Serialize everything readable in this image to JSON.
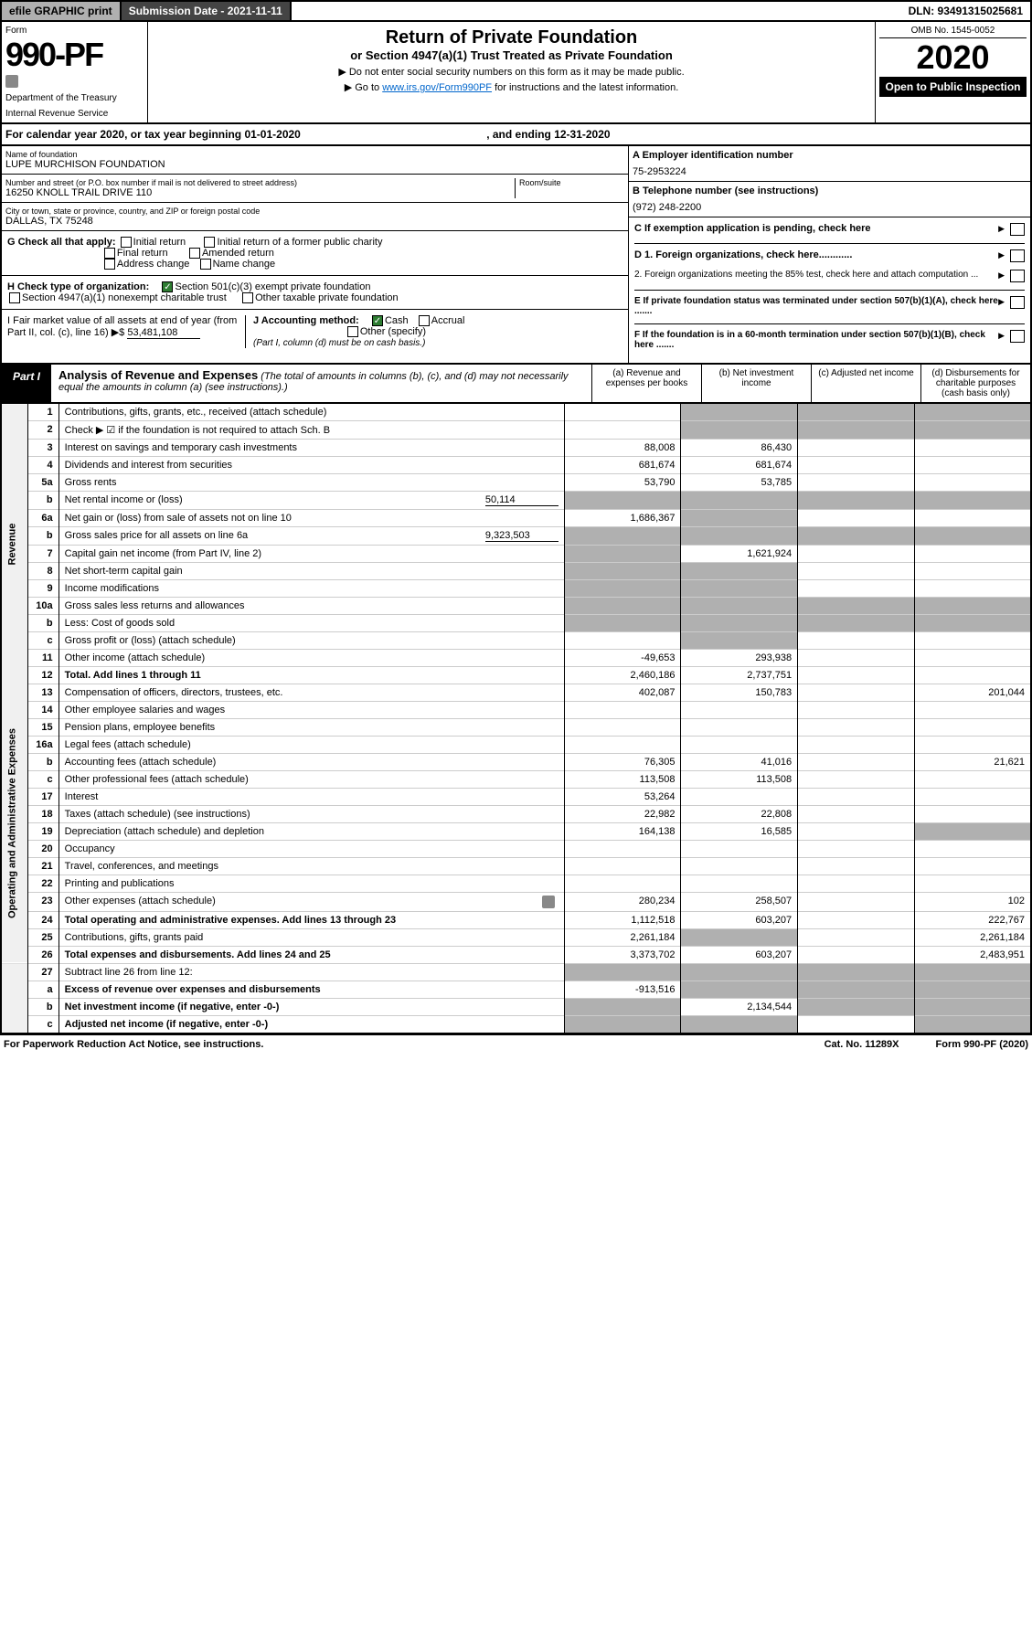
{
  "topbar": {
    "efile": "efile GRAPHIC print",
    "subdate": "Submission Date - 2021-11-11",
    "dln": "DLN: 93491315025681"
  },
  "header": {
    "form_label": "Form",
    "form_num": "990-PF",
    "dept": "Department of the Treasury",
    "irs": "Internal Revenue Service",
    "title": "Return of Private Foundation",
    "subtitle": "or Section 4947(a)(1) Trust Treated as Private Foundation",
    "note1": "▶ Do not enter social security numbers on this form as it may be made public.",
    "note2_pre": "▶ Go to ",
    "note2_link": "www.irs.gov/Form990PF",
    "note2_post": " for instructions and the latest information.",
    "omb": "OMB No. 1545-0052",
    "year": "2020",
    "open": "Open to Public Inspection"
  },
  "calyear": {
    "text_pre": "For calendar year 2020, or tax year beginning ",
    "begin": "01-01-2020",
    "text_mid": ", and ending ",
    "end": "12-31-2020"
  },
  "entity": {
    "name_lbl": "Name of foundation",
    "name": "LUPE MURCHISON FOUNDATION",
    "addr_lbl": "Number and street (or P.O. box number if mail is not delivered to street address)",
    "addr": "16250 KNOLL TRAIL DRIVE 110",
    "room_lbl": "Room/suite",
    "city_lbl": "City or town, state or province, country, and ZIP or foreign postal code",
    "city": "DALLAS, TX  75248",
    "ein_lbl": "A Employer identification number",
    "ein": "75-2953224",
    "phone_lbl": "B Telephone number (see instructions)",
    "phone": "(972) 248-2200",
    "c_lbl": "C If exemption application is pending, check here"
  },
  "checks": {
    "g_label": "G Check all that apply:",
    "g_opts": [
      "Initial return",
      "Final return",
      "Address change",
      "Initial return of a former public charity",
      "Amended return",
      "Name change"
    ],
    "h_label": "H Check type of organization:",
    "h_501": "Section 501(c)(3) exempt private foundation",
    "h_4947": "Section 4947(a)(1) nonexempt charitable trust",
    "h_other": "Other taxable private foundation",
    "i_label": "I Fair market value of all assets at end of year (from Part II, col. (c), line 16) ▶$",
    "i_val": "53,481,108",
    "j_label": "J Accounting method:",
    "j_cash": "Cash",
    "j_accrual": "Accrual",
    "j_other": "Other (specify)",
    "j_note": "(Part I, column (d) must be on cash basis.)",
    "d1": "D 1. Foreign organizations, check here............",
    "d2": "2. Foreign organizations meeting the 85% test, check here and attach computation ...",
    "e": "E  If private foundation status was terminated under section 507(b)(1)(A), check here .......",
    "f": "F  If the foundation is in a 60-month termination under section 507(b)(1)(B), check here .......",
    "arrow": "▶"
  },
  "part1": {
    "tag": "Part I",
    "title": "Analysis of Revenue and Expenses",
    "title_note": " (The total of amounts in columns (b), (c), and (d) may not necessarily equal the amounts in column (a) (see instructions).)",
    "col_a": "(a) Revenue and expenses per books",
    "col_b": "(b) Net investment income",
    "col_c": "(c) Adjusted net income",
    "col_d": "(d) Disbursements for charitable purposes (cash basis only)"
  },
  "sections": {
    "revenue": "Revenue",
    "expenses": "Operating and Administrative Expenses"
  },
  "lines": [
    {
      "n": "1",
      "d": "Contributions, gifts, grants, etc., received (attach schedule)",
      "a": "",
      "b": "",
      "c": "",
      "dv": "",
      "sb": true,
      "sc": true,
      "sd": true
    },
    {
      "n": "2",
      "d": "Check ▶ ☑ if the foundation is not required to attach Sch. B",
      "a": "",
      "b": "",
      "c": "",
      "dv": "",
      "sb": true,
      "sc": true,
      "sd": true
    },
    {
      "n": "3",
      "d": "Interest on savings and temporary cash investments",
      "a": "88,008",
      "b": "86,430",
      "c": "",
      "dv": ""
    },
    {
      "n": "4",
      "d": "Dividends and interest from securities",
      "a": "681,674",
      "b": "681,674",
      "c": "",
      "dv": ""
    },
    {
      "n": "5a",
      "d": "Gross rents",
      "a": "53,790",
      "b": "53,785",
      "c": "",
      "dv": ""
    },
    {
      "n": "b",
      "d": "Net rental income or (loss)",
      "inline": "50,114",
      "a": "",
      "b": "",
      "c": "",
      "dv": "",
      "sa": true,
      "sb": true,
      "sc": true,
      "sd": true
    },
    {
      "n": "6a",
      "d": "Net gain or (loss) from sale of assets not on line 10",
      "a": "1,686,367",
      "b": "",
      "c": "",
      "dv": "",
      "sb": true
    },
    {
      "n": "b",
      "d": "Gross sales price for all assets on line 6a",
      "inline": "9,323,503",
      "a": "",
      "b": "",
      "c": "",
      "dv": "",
      "sa": true,
      "sb": true,
      "sc": true,
      "sd": true
    },
    {
      "n": "7",
      "d": "Capital gain net income (from Part IV, line 2)",
      "a": "",
      "b": "1,621,924",
      "c": "",
      "dv": "",
      "sa": true
    },
    {
      "n": "8",
      "d": "Net short-term capital gain",
      "a": "",
      "b": "",
      "c": "",
      "dv": "",
      "sa": true,
      "sb": true
    },
    {
      "n": "9",
      "d": "Income modifications",
      "a": "",
      "b": "",
      "c": "",
      "dv": "",
      "sa": true,
      "sb": true
    },
    {
      "n": "10a",
      "d": "Gross sales less returns and allowances",
      "a": "",
      "b": "",
      "c": "",
      "dv": "",
      "sa": true,
      "sb": true,
      "sc": true,
      "sd": true
    },
    {
      "n": "b",
      "d": "Less: Cost of goods sold",
      "a": "",
      "b": "",
      "c": "",
      "dv": "",
      "sa": true,
      "sb": true,
      "sc": true,
      "sd": true
    },
    {
      "n": "c",
      "d": "Gross profit or (loss) (attach schedule)",
      "a": "",
      "b": "",
      "c": "",
      "dv": "",
      "sb": true
    },
    {
      "n": "11",
      "d": "Other income (attach schedule)",
      "a": "-49,653",
      "b": "293,938",
      "c": "",
      "dv": ""
    },
    {
      "n": "12",
      "d": "Total. Add lines 1 through 11",
      "a": "2,460,186",
      "b": "2,737,751",
      "c": "",
      "dv": "",
      "bold": true
    }
  ],
  "exp_lines": [
    {
      "n": "13",
      "d": "Compensation of officers, directors, trustees, etc.",
      "a": "402,087",
      "b": "150,783",
      "c": "",
      "dv": "201,044"
    },
    {
      "n": "14",
      "d": "Other employee salaries and wages",
      "a": "",
      "b": "",
      "c": "",
      "dv": ""
    },
    {
      "n": "15",
      "d": "Pension plans, employee benefits",
      "a": "",
      "b": "",
      "c": "",
      "dv": ""
    },
    {
      "n": "16a",
      "d": "Legal fees (attach schedule)",
      "a": "",
      "b": "",
      "c": "",
      "dv": ""
    },
    {
      "n": "b",
      "d": "Accounting fees (attach schedule)",
      "a": "76,305",
      "b": "41,016",
      "c": "",
      "dv": "21,621"
    },
    {
      "n": "c",
      "d": "Other professional fees (attach schedule)",
      "a": "113,508",
      "b": "113,508",
      "c": "",
      "dv": ""
    },
    {
      "n": "17",
      "d": "Interest",
      "a": "53,264",
      "b": "",
      "c": "",
      "dv": ""
    },
    {
      "n": "18",
      "d": "Taxes (attach schedule) (see instructions)",
      "a": "22,982",
      "b": "22,808",
      "c": "",
      "dv": ""
    },
    {
      "n": "19",
      "d": "Depreciation (attach schedule) and depletion",
      "a": "164,138",
      "b": "16,585",
      "c": "",
      "dv": "",
      "sd": true
    },
    {
      "n": "20",
      "d": "Occupancy",
      "a": "",
      "b": "",
      "c": "",
      "dv": ""
    },
    {
      "n": "21",
      "d": "Travel, conferences, and meetings",
      "a": "",
      "b": "",
      "c": "",
      "dv": ""
    },
    {
      "n": "22",
      "d": "Printing and publications",
      "a": "",
      "b": "",
      "c": "",
      "dv": ""
    },
    {
      "n": "23",
      "d": "Other expenses (attach schedule)",
      "a": "280,234",
      "b": "258,507",
      "c": "",
      "dv": "102",
      "att": true
    },
    {
      "n": "24",
      "d": "Total operating and administrative expenses. Add lines 13 through 23",
      "a": "1,112,518",
      "b": "603,207",
      "c": "",
      "dv": "222,767",
      "bold": true
    },
    {
      "n": "25",
      "d": "Contributions, gifts, grants paid",
      "a": "2,261,184",
      "b": "",
      "c": "",
      "dv": "2,261,184",
      "sb": true
    },
    {
      "n": "26",
      "d": "Total expenses and disbursements. Add lines 24 and 25",
      "a": "3,373,702",
      "b": "603,207",
      "c": "",
      "dv": "2,483,951",
      "bold": true
    }
  ],
  "net_lines": [
    {
      "n": "27",
      "d": "Subtract line 26 from line 12:",
      "a": "",
      "b": "",
      "c": "",
      "dv": "",
      "sa": true,
      "sb": true,
      "sc": true,
      "sd": true
    },
    {
      "n": "a",
      "d": "Excess of revenue over expenses and disbursements",
      "a": "-913,516",
      "b": "",
      "c": "",
      "dv": "",
      "bold": true,
      "sb": true,
      "sc": true,
      "sd": true
    },
    {
      "n": "b",
      "d": "Net investment income (if negative, enter -0-)",
      "a": "",
      "b": "2,134,544",
      "c": "",
      "dv": "",
      "bold": true,
      "sa": true,
      "sc": true,
      "sd": true
    },
    {
      "n": "c",
      "d": "Adjusted net income (if negative, enter -0-)",
      "a": "",
      "b": "",
      "c": "",
      "dv": "",
      "bold": true,
      "sa": true,
      "sb": true,
      "sd": true
    }
  ],
  "footer": {
    "pra": "For Paperwork Reduction Act Notice, see instructions.",
    "cat": "Cat. No. 11289X",
    "form": "Form 990-PF (2020)"
  }
}
